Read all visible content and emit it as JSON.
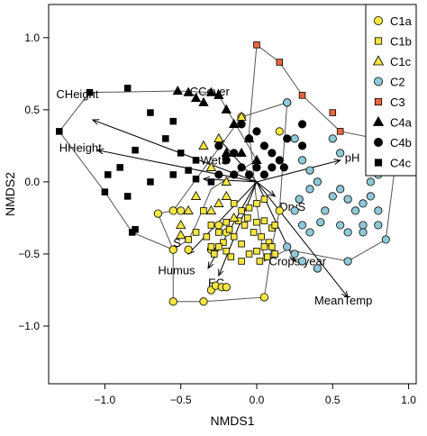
{
  "chart_data": {
    "type": "scatter",
    "xlabel": "NMDS1",
    "ylabel": "NMDS2",
    "xlim": [
      -1.37,
      1.05
    ],
    "ylim": [
      -1.4,
      1.23
    ],
    "xticks": [
      -1.0,
      -0.5,
      0.0,
      0.5,
      1.0
    ],
    "xtick_labels": [
      "−1.0",
      "−0.5",
      "0.0",
      "0.5",
      "1.0"
    ],
    "yticks": [
      -1.0,
      -0.5,
      0.0,
      0.5,
      1.0
    ],
    "ytick_labels": [
      "−1.0",
      "−0.5",
      "0.0",
      "0.5",
      "1.0"
    ],
    "grid": false,
    "legend_position": "top-right",
    "series": [
      {
        "name": "C1a",
        "marker": "circle",
        "color": "#f5e642",
        "stroke": "#000000",
        "points": [
          [
            -0.55,
            -0.83
          ],
          [
            -0.35,
            -0.83
          ],
          [
            -0.3,
            -0.75
          ],
          [
            -0.27,
            -0.72
          ],
          [
            -0.23,
            -0.73
          ],
          [
            -0.2,
            -0.73
          ],
          [
            0.05,
            -0.8
          ],
          [
            -0.65,
            -0.22
          ],
          [
            -0.55,
            -0.2
          ],
          [
            -0.5,
            -0.2
          ],
          [
            -0.45,
            -0.47
          ],
          [
            -0.2,
            -0.35
          ],
          [
            -0.25,
            -0.3
          ],
          [
            0.15,
            -0.2
          ],
          [
            -0.1,
            0.45
          ],
          [
            0.2,
            0.55
          ],
          [
            0.15,
            0.35
          ],
          [
            -0.3,
            -0.47
          ],
          [
            -0.55,
            -0.47
          ]
        ]
      },
      {
        "name": "C1b",
        "marker": "square",
        "color": "#f5e642",
        "stroke": "#000000",
        "points": [
          [
            -0.3,
            -0.3
          ],
          [
            -0.25,
            -0.35
          ],
          [
            -0.22,
            -0.42
          ],
          [
            -0.2,
            -0.28
          ],
          [
            -0.18,
            -0.33
          ],
          [
            -0.15,
            -0.38
          ],
          [
            -0.12,
            -0.27
          ],
          [
            -0.1,
            -0.43
          ],
          [
            -0.08,
            -0.3
          ],
          [
            -0.06,
            -0.25
          ],
          [
            -0.02,
            -0.35
          ],
          [
            0.0,
            -0.28
          ],
          [
            0.03,
            -0.38
          ],
          [
            0.05,
            -0.27
          ],
          [
            0.08,
            -0.42
          ],
          [
            0.1,
            -0.32
          ],
          [
            0.1,
            -0.45
          ],
          [
            0.12,
            -0.3
          ],
          [
            -0.28,
            -0.5
          ],
          [
            -0.25,
            -0.45
          ],
          [
            -0.2,
            -0.48
          ],
          [
            -0.17,
            -0.52
          ],
          [
            -0.1,
            -0.55
          ],
          [
            -0.05,
            -0.5
          ],
          [
            0.0,
            -0.48
          ],
          [
            0.02,
            -0.55
          ],
          [
            0.05,
            -0.45
          ],
          [
            0.07,
            -0.52
          ],
          [
            0.12,
            -0.5
          ],
          [
            -0.45,
            -0.4
          ],
          [
            -0.4,
            -0.35
          ],
          [
            -0.33,
            -0.38
          ],
          [
            -0.3,
            -0.45
          ],
          [
            -0.15,
            -0.15
          ],
          [
            -0.1,
            -0.2
          ],
          [
            -0.05,
            -0.18
          ],
          [
            0.0,
            -0.15
          ],
          [
            0.05,
            -0.12
          ],
          [
            -0.35,
            -0.2
          ]
        ]
      },
      {
        "name": "C1c",
        "marker": "triangle",
        "color": "#f5e642",
        "stroke": "#000000",
        "points": [
          [
            -0.5,
            -0.3
          ],
          [
            -0.5,
            -0.37
          ],
          [
            -0.45,
            -0.2
          ],
          [
            -0.4,
            -0.1
          ],
          [
            -0.3,
            -0.2
          ],
          [
            -0.25,
            -0.15
          ],
          [
            -0.2,
            -0.1
          ],
          [
            -0.15,
            -0.25
          ],
          [
            -0.1,
            0.45
          ],
          [
            -0.35,
            0.25
          ],
          [
            -0.25,
            0.3
          ],
          [
            -0.3,
            0.1
          ],
          [
            -0.2,
            0.0
          ]
        ]
      },
      {
        "name": "C2",
        "marker": "circle",
        "color": "#8ec9d8",
        "stroke": "#000000",
        "points": [
          [
            0.2,
            0.55
          ],
          [
            0.25,
            0.3
          ],
          [
            0.3,
            0.15
          ],
          [
            0.35,
            0.08
          ],
          [
            0.4,
            0.0
          ],
          [
            0.35,
            -0.05
          ],
          [
            0.28,
            -0.12
          ],
          [
            0.25,
            -0.2
          ],
          [
            0.3,
            -0.3
          ],
          [
            0.35,
            -0.35
          ],
          [
            0.42,
            -0.28
          ],
          [
            0.45,
            -0.2
          ],
          [
            0.5,
            -0.1
          ],
          [
            0.55,
            -0.05
          ],
          [
            0.6,
            -0.12
          ],
          [
            0.65,
            -0.2
          ],
          [
            0.7,
            -0.15
          ],
          [
            0.75,
            -0.1
          ],
          [
            0.8,
            -0.2
          ],
          [
            0.55,
            -0.3
          ],
          [
            0.6,
            -0.35
          ],
          [
            0.7,
            -0.3
          ],
          [
            0.8,
            -0.3
          ],
          [
            0.7,
            -0.35
          ],
          [
            0.75,
            0.0
          ],
          [
            0.8,
            0.05
          ],
          [
            0.85,
            0.1
          ],
          [
            0.85,
            0.2
          ],
          [
            0.9,
            0.25
          ],
          [
            0.93,
            0.27
          ],
          [
            0.85,
            -0.4
          ],
          [
            0.55,
            0.2
          ],
          [
            0.5,
            0.3
          ],
          [
            0.2,
            -0.45
          ],
          [
            0.25,
            -0.5
          ],
          [
            0.3,
            -0.55
          ],
          [
            0.4,
            -0.6
          ],
          [
            0.6,
            -0.55
          ]
        ]
      },
      {
        "name": "C3",
        "marker": "square",
        "color": "#e8663d",
        "stroke": "#000000",
        "points": [
          [
            0.0,
            0.95
          ],
          [
            0.15,
            0.83
          ],
          [
            0.3,
            0.6
          ],
          [
            0.5,
            0.48
          ],
          [
            0.55,
            0.35
          ]
        ]
      },
      {
        "name": "C4a",
        "marker": "triangle",
        "color": "#000000",
        "stroke": "#000000",
        "points": [
          [
            -0.52,
            0.63
          ],
          [
            -0.45,
            0.62
          ],
          [
            -0.4,
            0.58
          ],
          [
            -0.35,
            0.55
          ],
          [
            -0.3,
            0.62
          ],
          [
            -0.25,
            0.6
          ],
          [
            -0.2,
            0.5
          ],
          [
            -0.15,
            0.4
          ],
          [
            -0.2,
            0.2
          ],
          [
            -0.1,
            0.2
          ],
          [
            -0.05,
            0.3
          ],
          [
            0.0,
            0.15
          ]
        ]
      },
      {
        "name": "C4b",
        "marker": "circle",
        "color": "#000000",
        "stroke": "#000000",
        "points": [
          [
            -0.1,
            0.4
          ],
          [
            -0.05,
            0.3
          ],
          [
            0.0,
            0.35
          ],
          [
            0.05,
            0.25
          ],
          [
            0.1,
            0.2
          ],
          [
            0.15,
            0.15
          ],
          [
            -0.2,
            0.15
          ],
          [
            -0.25,
            0.05
          ],
          [
            -0.15,
            0.05
          ],
          [
            -0.1,
            0.1
          ],
          [
            -0.05,
            0.05
          ],
          [
            0.0,
            0.1
          ],
          [
            0.05,
            0.05
          ],
          [
            0.1,
            0.1
          ],
          [
            0.2,
            0.3
          ],
          [
            0.3,
            0.4
          ],
          [
            0.3,
            0.25
          ],
          [
            -0.15,
            0.2
          ],
          [
            -0.25,
            0.25
          ],
          [
            0.18,
            0.1
          ]
        ]
      },
      {
        "name": "C4c",
        "marker": "square",
        "color": "#000000",
        "stroke": "#000000",
        "points": [
          [
            -1.3,
            0.35
          ],
          [
            -1.1,
            0.62
          ],
          [
            -0.85,
            0.65
          ],
          [
            -0.7,
            0.48
          ],
          [
            -0.55,
            0.42
          ],
          [
            -0.6,
            0.3
          ],
          [
            -0.5,
            0.2
          ],
          [
            -0.4,
            0.15
          ],
          [
            -0.45,
            0.08
          ],
          [
            -0.4,
            0.02
          ],
          [
            -0.8,
            0.22
          ],
          [
            -0.9,
            0.1
          ],
          [
            -0.98,
            0.05
          ],
          [
            -1.0,
            -0.07
          ],
          [
            -0.85,
            -0.1
          ],
          [
            -0.8,
            -0.33
          ],
          [
            -0.82,
            -0.35
          ],
          [
            -0.7,
            0.0
          ],
          [
            -0.55,
            0.05
          ],
          [
            -0.3,
            0.0
          ]
        ]
      }
    ],
    "hulls": [
      {
        "group": "C1",
        "points": [
          [
            -0.55,
            -0.83
          ],
          [
            -0.35,
            -0.83
          ],
          [
            0.05,
            -0.8
          ],
          [
            0.1,
            -0.45
          ],
          [
            0.15,
            -0.2
          ],
          [
            0.2,
            0.55
          ],
          [
            -0.1,
            0.45
          ],
          [
            -0.55,
            -0.2
          ],
          [
            -0.65,
            -0.22
          ],
          [
            -0.55,
            -0.47
          ]
        ]
      },
      {
        "group": "C2C3",
        "points": [
          [
            0.0,
            0.95
          ],
          [
            0.15,
            0.83
          ],
          [
            0.3,
            0.6
          ],
          [
            0.55,
            0.35
          ],
          [
            0.93,
            0.27
          ],
          [
            0.85,
            -0.4
          ],
          [
            0.6,
            -0.55
          ],
          [
            0.2,
            -0.47
          ],
          [
            0.05,
            -0.55
          ],
          [
            0.0,
            -0.15
          ],
          [
            -0.05,
            0.35
          ]
        ]
      },
      {
        "group": "C4",
        "points": [
          [
            -1.3,
            0.35
          ],
          [
            -1.1,
            0.62
          ],
          [
            -0.52,
            0.63
          ],
          [
            -0.3,
            0.62
          ],
          [
            -0.25,
            0.6
          ],
          [
            0.0,
            0.15
          ],
          [
            -0.3,
            -0.05
          ],
          [
            -0.4,
            -0.3
          ],
          [
            -0.45,
            -0.4
          ],
          [
            -0.55,
            -0.47
          ],
          [
            -0.82,
            -0.35
          ],
          [
            -1.0,
            -0.07
          ]
        ]
      }
    ],
    "vectors": [
      {
        "label": "CHeight",
        "x": -1.08,
        "y": 0.43,
        "tx": -1.32,
        "ty": 0.58,
        "anchor": "start"
      },
      {
        "label": "HHeight",
        "x": -1.05,
        "y": 0.22,
        "tx": -1.3,
        "ty": 0.21,
        "anchor": "start"
      },
      {
        "label": "CCover",
        "x": -0.25,
        "y": 0.3,
        "tx": -0.44,
        "ty": 0.6,
        "anchor": "start"
      },
      {
        "label": "WetS",
        "x": -0.35,
        "y": 0.02,
        "tx": -0.37,
        "ty": 0.12,
        "anchor": "start"
      },
      {
        "label": "pH",
        "x": 0.55,
        "y": 0.15,
        "tx": 0.58,
        "ty": 0.14,
        "anchor": "start"
      },
      {
        "label": "DryS",
        "x": 0.12,
        "y": -0.1,
        "tx": 0.15,
        "ty": -0.2,
        "anchor": "start"
      },
      {
        "label": "S",
        "x": -0.45,
        "y": -0.5,
        "tx": -0.55,
        "ty": -0.45,
        "anchor": "start"
      },
      {
        "label": "Humus",
        "x": -0.32,
        "y": -0.6,
        "tx": -0.65,
        "ty": -0.64,
        "anchor": "start"
      },
      {
        "label": "EC",
        "x": -0.25,
        "y": -0.65,
        "tx": -0.32,
        "ty": -0.73,
        "anchor": "start"
      },
      {
        "label": "Crops/year",
        "x": 0.25,
        "y": -0.55,
        "tx": 0.08,
        "ty": -0.58,
        "anchor": "start"
      },
      {
        "label": "MeanTemp",
        "x": 0.6,
        "y": -0.8,
        "tx": 0.38,
        "ty": -0.85,
        "anchor": "start"
      }
    ]
  }
}
